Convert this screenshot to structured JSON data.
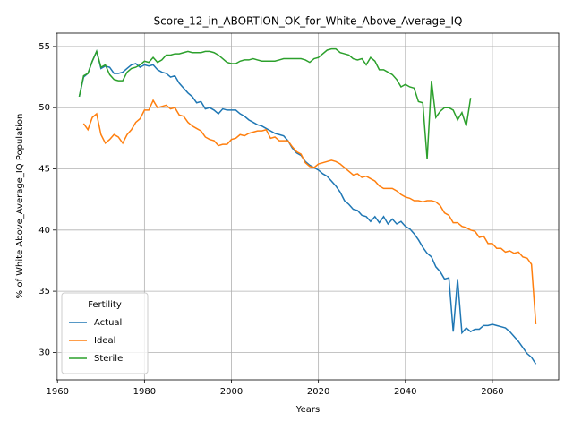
{
  "chart_data": {
    "type": "line",
    "title": "Score_12_in_ABORTION_OK_for_White_Above_Average_IQ",
    "x_label": "Years",
    "y_label": "% of White Above_Average_IQ Population",
    "x": [
      1965,
      1966,
      1967,
      1968,
      1969,
      1970,
      1971,
      1972,
      1973,
      1974,
      1975,
      1976,
      1977,
      1978,
      1979,
      1980,
      1981,
      1982,
      1983,
      1984,
      1985,
      1986,
      1987,
      1988,
      1989,
      1990,
      1991,
      1992,
      1993,
      1994,
      1995,
      1996,
      1997,
      1998,
      1999,
      2000,
      2001,
      2002,
      2003,
      2004,
      2005,
      2006,
      2007,
      2008,
      2009,
      2010,
      2011,
      2012,
      2013,
      2014,
      2015,
      2016,
      2017,
      2018,
      2019,
      2020,
      2021,
      2022,
      2023,
      2024,
      2025,
      2026,
      2027,
      2028,
      2029,
      2030,
      2031,
      2032,
      2033,
      2034,
      2035,
      2036,
      2037,
      2038,
      2039,
      2040,
      2041,
      2042,
      2043,
      2044,
      2045,
      2046,
      2047,
      2048,
      2049,
      2050,
      2051,
      2052,
      2053,
      2054,
      2055,
      2056,
      2057,
      2058,
      2059,
      2060,
      2061,
      2062,
      2063,
      2064,
      2065,
      2066,
      2067,
      2068,
      2069,
      2070
    ],
    "series": [
      {
        "name": "Actual",
        "color": "#1f77b4",
        "values": [
          50.9,
          52.5,
          52.8,
          53.8,
          54.6,
          53.2,
          53.4,
          53.3,
          52.8,
          52.8,
          52.9,
          53.2,
          53.5,
          53.6,
          53.3,
          53.5,
          53.4,
          53.5,
          53.1,
          52.9,
          52.8,
          52.5,
          52.6,
          52.0,
          51.6,
          51.2,
          50.9,
          50.4,
          50.5,
          49.9,
          50.0,
          49.8,
          49.5,
          49.9,
          49.8,
          49.8,
          49.8,
          49.5,
          49.3,
          49.0,
          48.8,
          48.6,
          48.5,
          48.3,
          48.1,
          47.9,
          47.8,
          47.7,
          47.3,
          46.7,
          46.3,
          46.1,
          45.6,
          45.3,
          45.1,
          44.9,
          44.6,
          44.4,
          44.0,
          43.6,
          43.1,
          42.4,
          42.1,
          41.7,
          41.6,
          41.2,
          41.1,
          40.7,
          41.1,
          40.6,
          41.1,
          40.5,
          40.9,
          40.5,
          40.7,
          40.3,
          40.1,
          39.7,
          39.2,
          38.6,
          38.1,
          37.8,
          37.0,
          36.6,
          36.0,
          36.1,
          31.7,
          36.0,
          31.6,
          32.0,
          31.7,
          31.9,
          31.9,
          32.2,
          32.2,
          32.3,
          32.2,
          32.1,
          32.0,
          31.7,
          31.3,
          30.9,
          30.4,
          29.9,
          29.6,
          29.05
        ]
      },
      {
        "name": "Ideal",
        "color": "#ff7f0e",
        "values": [
          null,
          48.7,
          48.2,
          49.2,
          49.5,
          47.8,
          47.1,
          47.4,
          47.8,
          47.6,
          47.1,
          47.8,
          48.2,
          48.8,
          49.1,
          49.8,
          49.8,
          50.6,
          50.0,
          50.1,
          50.2,
          49.9,
          50.0,
          49.4,
          49.3,
          48.8,
          48.5,
          48.3,
          48.1,
          47.6,
          47.4,
          47.3,
          46.9,
          47.0,
          47.0,
          47.4,
          47.5,
          47.8,
          47.7,
          47.9,
          48.0,
          48.1,
          48.1,
          48.2,
          47.5,
          47.6,
          47.3,
          47.3,
          47.3,
          46.8,
          46.4,
          46.2,
          45.5,
          45.2,
          45.1,
          45.4,
          45.5,
          45.6,
          45.7,
          45.6,
          45.4,
          45.1,
          44.8,
          44.5,
          44.6,
          44.3,
          44.4,
          44.2,
          44.0,
          43.6,
          43.4,
          43.4,
          43.4,
          43.2,
          42.9,
          42.7,
          42.6,
          42.4,
          42.4,
          42.3,
          42.4,
          42.4,
          42.3,
          42.0,
          41.4,
          41.2,
          40.6,
          40.6,
          40.3,
          40.2,
          40.0,
          39.9,
          39.4,
          39.5,
          38.9,
          38.9,
          38.5,
          38.5,
          38.2,
          38.3,
          38.1,
          38.2,
          37.8,
          37.7,
          37.2,
          32.3
        ]
      },
      {
        "name": "Sterile",
        "color": "#2ca02c",
        "values": [
          50.9,
          52.6,
          52.8,
          53.8,
          54.6,
          53.3,
          53.5,
          52.7,
          52.3,
          52.2,
          52.2,
          52.9,
          53.2,
          53.3,
          53.5,
          53.8,
          53.7,
          54.1,
          53.7,
          53.9,
          54.3,
          54.3,
          54.4,
          54.4,
          54.5,
          54.6,
          54.5,
          54.5,
          54.5,
          54.6,
          54.6,
          54.5,
          54.3,
          54.0,
          53.7,
          53.6,
          53.6,
          53.8,
          53.9,
          53.9,
          54.0,
          53.9,
          53.8,
          53.8,
          53.8,
          53.8,
          53.9,
          54.0,
          54.0,
          54.0,
          54.0,
          54.0,
          53.9,
          53.7,
          54.0,
          54.1,
          54.4,
          54.7,
          54.8,
          54.8,
          54.5,
          54.4,
          54.3,
          54.0,
          53.9,
          54.0,
          53.5,
          54.1,
          53.8,
          53.1,
          53.1,
          52.9,
          52.7,
          52.3,
          51.7,
          51.9,
          51.7,
          51.6,
          50.5,
          50.4,
          45.8,
          52.2,
          49.2,
          49.7,
          50.0,
          50.0,
          49.8,
          49.0,
          49.6,
          48.5,
          50.8,
          null,
          null,
          null,
          null,
          null,
          null,
          null,
          null,
          null,
          null,
          null,
          null,
          null,
          null,
          null
        ]
      }
    ],
    "xlim": [
      1959.75,
      2075.25
    ],
    "ylim": [
      27.76,
      56.09
    ],
    "xticks": [
      1960,
      1980,
      2000,
      2020,
      2040,
      2060
    ],
    "yticks": [
      30,
      35,
      40,
      45,
      50,
      55
    ],
    "grid": true,
    "legend_title": "Fertility",
    "legend_position": "lower left"
  }
}
